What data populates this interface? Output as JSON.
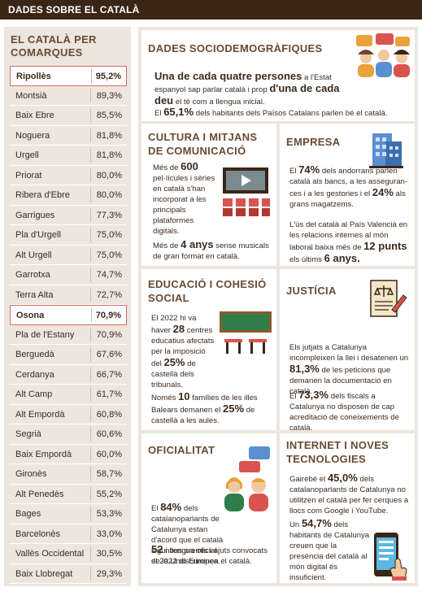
{
  "header": {
    "title": "DADES SOBRE EL CATALÀ"
  },
  "sidebar": {
    "title": "EL CATALÀ PER COMARQUES",
    "rows": [
      {
        "name": "Ripollès",
        "value": "95,2%",
        "highlight": true
      },
      {
        "name": "Montsià",
        "value": "89,3%"
      },
      {
        "name": "Baix Ebre",
        "value": "85,5%"
      },
      {
        "name": "Noguera",
        "value": "81,8%"
      },
      {
        "name": "Urgell",
        "value": "81,8%"
      },
      {
        "name": "Priorat",
        "value": "80,0%"
      },
      {
        "name": "Ribera d'Ebre",
        "value": "80,0%"
      },
      {
        "name": "Garrigues",
        "value": "77,3%"
      },
      {
        "name": "Pla d'Urgell",
        "value": "75,0%"
      },
      {
        "name": "Alt Urgell",
        "value": "75,0%"
      },
      {
        "name": "Garrotxa",
        "value": "74,7%"
      },
      {
        "name": "Terra Alta",
        "value": "72,7%"
      },
      {
        "name": "Osona",
        "value": "70,9%",
        "highlight": true
      },
      {
        "name": "Pla de l'Estany",
        "value": "70,9%"
      },
      {
        "name": "Berguedà",
        "value": "67,6%"
      },
      {
        "name": "Cerdanya",
        "value": "66,7%"
      },
      {
        "name": "Alt Camp",
        "value": "61,7%"
      },
      {
        "name": "Alt Empordà",
        "value": "60,8%"
      },
      {
        "name": "Segrià",
        "value": "60,6%"
      },
      {
        "name": "Baix Empordà",
        "value": "60,0%"
      },
      {
        "name": "Gironès",
        "value": "58,7%"
      },
      {
        "name": "Alt Penedès",
        "value": "55,2%"
      },
      {
        "name": "Bages",
        "value": "53,3%"
      },
      {
        "name": "Barcelonès",
        "value": "33,0%"
      },
      {
        "name": "Vallès Occidental",
        "value": "30,5%"
      },
      {
        "name": "Baix Llobregat",
        "value": "29,3%"
      }
    ]
  },
  "socio": {
    "title": "DADES SOCIODEMOGRÀFIQUES",
    "p1a": "Una de cada quatre persones",
    "p1b": " a l'Estat espanyol sap parlar català i prop ",
    "p1c": "d'una de cada deu",
    "p1d": " el té com a llengua inicial.",
    "p2a": "El ",
    "p2b": "65,1%",
    "p2c": " dels habitants dels Països Catalans parlen bé el català."
  },
  "cultura": {
    "title": "CULTURA I MITJANS DE COMUNICACIÓ",
    "p1a": "Més de ",
    "p1b": "600",
    "p1c": " pel·lícules i sèries en català s'han incorporat a les principals plataformes digitals.",
    "p2a": "Més de ",
    "p2b": "4 anys",
    "p2c": " sense musicals de gran format en català."
  },
  "empresa": {
    "title": "EMPRESA",
    "p1a": "El ",
    "p1b": "74%",
    "p1c": " dels andorrans parlen català als bancs, a les asseguran­ces i a les gestories i el ",
    "p1d": "24%",
    "p1e": " als grans magatzems.",
    "p2a": "L'ús del català al País Valencià en les relacions internes al món laboral baixa més de ",
    "p2b": "12 punts",
    "p2c": " els últims ",
    "p2d": "6 anys."
  },
  "educacio": {
    "title": "EDUCACIÓ I COHESIÓ SOCIAL",
    "p1a": "El 2022 hi va haver ",
    "p1b": "28",
    "p1c": " centres educatius afectats per la imposició del ",
    "p1d": "25%",
    "p1e": " de castellà dels tribunals.",
    "p2a": "Només ",
    "p2b": "10",
    "p2c": " famílies de les illes Balears demanen el ",
    "p2d": "25%",
    "p2e": " de castellà a les aules."
  },
  "justicia": {
    "title": "JUSTÍCIA",
    "p1a": "Els jutjats a Catalunya incompleixen la llei i desatenen un ",
    "p1b": "81,3%",
    "p1c": " de les peticions que demanen la documentació en català.",
    "p2a": "El ",
    "p2b": "73,3%",
    "p2c": " dels fiscals a Catalunya no disposen de cap acreditació de coneixements de català."
  },
  "oficialitat": {
    "title": "OFICIALITAT",
    "p1a": "El ",
    "p1b": "84%",
    "p1c": " dels catalanoparlants de Catalunya estan d'acord que el català sigui llengua oficial de la Unió Europea.",
    "p2a": "",
    "p2b": "52",
    "p2c": " nous premis i ajuts convocats el 2022 discriminen el català."
  },
  "internet": {
    "title": "INTERNET I NOVES TECNOLOGIES",
    "p1a": "Gairebé el ",
    "p1b": "45,0%",
    "p1c": " dels catalanoparlants de Catalunya no utilitzen el català per fer cerques a llocs com Google i YouTube.",
    "p2a": "Un ",
    "p2b": "54,7%",
    "p2c": " dels habitants de Catalunya creuen que la presència del català al món digital és insuficient."
  }
}
